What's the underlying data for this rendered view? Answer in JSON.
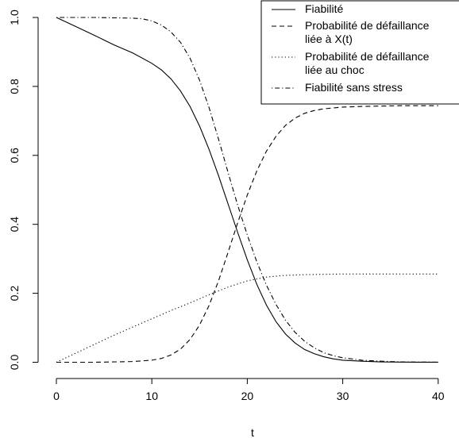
{
  "chart_data": {
    "type": "line",
    "xlabel": "t",
    "ylabel": "",
    "xlim": [
      -1,
      41.5
    ],
    "ylim": [
      -0.03,
      1.03
    ],
    "xticks": [
      0,
      10,
      20,
      30,
      40
    ],
    "yticks": [
      0.0,
      0.2,
      0.4,
      0.6,
      0.8,
      1.0
    ],
    "ytick_labels": [
      "0.0",
      "0.2",
      "0.4",
      "0.6",
      "0.8",
      "1.0"
    ],
    "grid": false,
    "legend_position": "top-right",
    "series": [
      {
        "name": "Fiabilité",
        "style": "solid",
        "x": [
          0,
          2,
          4,
          6,
          8,
          10,
          11,
          12,
          13,
          14,
          15,
          16,
          17,
          18,
          19,
          20,
          21,
          22,
          23,
          24,
          25,
          26,
          27,
          28,
          29,
          30,
          32,
          34,
          36,
          38,
          40
        ],
        "y": [
          1.0,
          0.974,
          0.948,
          0.921,
          0.897,
          0.867,
          0.848,
          0.822,
          0.787,
          0.742,
          0.685,
          0.617,
          0.54,
          0.458,
          0.376,
          0.297,
          0.226,
          0.166,
          0.118,
          0.082,
          0.056,
          0.037,
          0.025,
          0.016,
          0.01,
          0.006,
          0.003,
          0.001,
          0.0005,
          0.0002,
          0.0001
        ]
      },
      {
        "name": "Probabilité de défaillance liée à X(t)",
        "style": "dashed",
        "x": [
          0,
          4,
          8,
          10,
          11,
          12,
          13,
          14,
          15,
          16,
          17,
          18,
          19,
          20,
          21,
          22,
          23,
          24,
          25,
          26,
          27,
          28,
          30,
          32,
          34,
          36,
          40
        ],
        "y": [
          0.0,
          0.0,
          0.002,
          0.006,
          0.011,
          0.021,
          0.038,
          0.066,
          0.108,
          0.165,
          0.237,
          0.32,
          0.405,
          0.485,
          0.555,
          0.612,
          0.655,
          0.687,
          0.708,
          0.722,
          0.73,
          0.735,
          0.74,
          0.742,
          0.743,
          0.744,
          0.744
        ]
      },
      {
        "name": "Probabilité de défaillance liée au choc",
        "style": "dotted",
        "x": [
          0,
          2,
          4,
          6,
          8,
          10,
          12,
          14,
          16,
          18,
          20,
          22,
          24,
          26,
          28,
          30,
          35,
          40
        ],
        "y": [
          0.0,
          0.026,
          0.052,
          0.078,
          0.102,
          0.126,
          0.15,
          0.172,
          0.196,
          0.218,
          0.236,
          0.247,
          0.252,
          0.254,
          0.255,
          0.256,
          0.256,
          0.256
        ]
      },
      {
        "name": "Fiabilité sans stress",
        "style": "dotdash",
        "x": [
          0,
          4,
          8,
          9,
          10,
          11,
          12,
          13,
          14,
          15,
          16,
          17,
          18,
          19,
          20,
          21,
          22,
          23,
          24,
          25,
          26,
          27,
          28,
          29,
          30,
          32,
          34,
          36,
          38,
          40
        ],
        "y": [
          1.0,
          1.0,
          0.998,
          0.996,
          0.99,
          0.978,
          0.958,
          0.928,
          0.882,
          0.818,
          0.738,
          0.646,
          0.549,
          0.455,
          0.369,
          0.291,
          0.224,
          0.168,
          0.122,
          0.087,
          0.061,
          0.042,
          0.028,
          0.019,
          0.013,
          0.006,
          0.003,
          0.001,
          0.0005,
          0.0002
        ]
      }
    ]
  }
}
